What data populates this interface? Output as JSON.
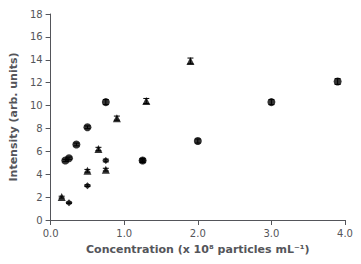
{
  "chart_data": {
    "type": "scatter",
    "xlabel": "Concentration (x 10⁸ particles mL⁻¹)",
    "ylabel": "Intensity (arb. units)",
    "xlim": [
      0,
      4.0
    ],
    "ylim": [
      0,
      18
    ],
    "xticks": [
      {
        "value": 0.0,
        "label": "0.0"
      },
      {
        "value": 1.0,
        "label": "1.0"
      },
      {
        "value": 2.0,
        "label": "2.0"
      },
      {
        "value": 3.0,
        "label": "3.0"
      },
      {
        "value": 4.0,
        "label": "4.0"
      }
    ],
    "yticks": [
      0,
      2,
      4,
      6,
      8,
      10,
      12,
      14,
      16,
      18
    ],
    "grid": false,
    "series": [
      {
        "marker": "diamond",
        "color": "#000000",
        "x": [
          0.25,
          0.5,
          0.75,
          1.25
        ],
        "values": [
          1.5,
          3.0,
          5.2,
          5.2
        ],
        "yerr": [
          0.07,
          0.08,
          0.12,
          0.12
        ]
      },
      {
        "marker": "triangle",
        "color": "#000000",
        "x": [
          0.15,
          0.5,
          0.65,
          0.75,
          0.9,
          1.3,
          1.9
        ],
        "values": [
          2.0,
          4.3,
          6.2,
          4.4,
          8.9,
          10.4,
          13.9
        ],
        "yerr": [
          0.08,
          0.12,
          0.15,
          0.12,
          0.18,
          0.22,
          0.25
        ]
      },
      {
        "marker": "circle",
        "color": "#000000",
        "x": [
          0.2,
          0.25,
          0.35,
          0.5,
          0.75,
          1.25,
          2.0,
          3.0,
          3.9
        ],
        "values": [
          5.2,
          5.4,
          6.6,
          8.1,
          10.3,
          5.2,
          6.9,
          10.3,
          12.1
        ],
        "yerr": [
          0.1,
          0.1,
          0.12,
          0.12,
          0.22,
          0.18,
          0.18,
          0.22,
          0.25
        ]
      }
    ]
  }
}
